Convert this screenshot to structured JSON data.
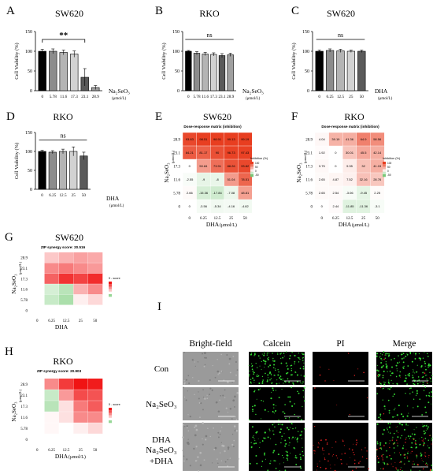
{
  "figure": {
    "panel_letters": [
      "A",
      "B",
      "C",
      "D",
      "E",
      "F",
      "G",
      "H",
      "I"
    ],
    "panel_titles": [
      "SW620",
      "RKO",
      "SW620",
      "RKO",
      "SW620",
      "RKO",
      "SW620",
      "RKO"
    ]
  },
  "chart_data": [
    {
      "id": "A",
      "type": "bar",
      "title": "SW620",
      "ylabel": "Cell Viability (%)",
      "xlabel": "Na₂SeO₃",
      "xunit": "(μmol/L)",
      "categories": [
        "0",
        "5.78",
        "11.6",
        "17.3",
        "23.1",
        "28.9"
      ],
      "values": [
        100,
        100,
        97,
        93,
        34,
        8
      ],
      "errors": [
        5,
        6,
        6,
        8,
        22,
        5
      ],
      "colors": [
        "#000000",
        "#8c8c8c",
        "#b4b4b4",
        "#d2d2d2",
        "#5a5a5a",
        "#a0a0a0"
      ],
      "ylim": [
        0,
        150
      ],
      "yticks": [
        0,
        50,
        100,
        150
      ],
      "significance": {
        "label": "**",
        "from": 0,
        "to": 4
      }
    },
    {
      "id": "B",
      "type": "bar",
      "title": "RKO",
      "ylabel": "Cell Viability (%)",
      "xlabel": "Na₂SeO₃",
      "xunit": "(μmol/L)",
      "categories": [
        "0",
        "5.78",
        "11.6",
        "17.3",
        "23.1",
        "28.9"
      ],
      "values": [
        100,
        95,
        93,
        92,
        89,
        91
      ],
      "errors": [
        2,
        4,
        4,
        4,
        5,
        4
      ],
      "colors": [
        "#000000",
        "#8c8c8c",
        "#b4b4b4",
        "#d2d2d2",
        "#5a5a5a",
        "#a0a0a0"
      ],
      "ylim": [
        0,
        150
      ],
      "yticks": [
        0,
        50,
        100,
        150
      ],
      "significance": {
        "label": "ns",
        "from": 0,
        "to": 5
      }
    },
    {
      "id": "C",
      "type": "bar",
      "title": "SW620",
      "ylabel": "Cell Viability (%)",
      "xlabel": "DHA",
      "xunit": "(μmol/L)",
      "categories": [
        "0",
        "6.25",
        "12.5",
        "25",
        "50"
      ],
      "values": [
        100,
        102,
        101,
        100,
        100
      ],
      "errors": [
        3,
        4,
        4,
        3,
        3
      ],
      "colors": [
        "#000000",
        "#8c8c8c",
        "#b4b4b4",
        "#d2d2d2",
        "#5a5a5a"
      ],
      "ylim": [
        0,
        150
      ],
      "yticks": [
        0,
        50,
        100,
        150
      ],
      "significance": {
        "label": "ns",
        "from": 0,
        "to": 4
      }
    },
    {
      "id": "D",
      "type": "bar",
      "title": "RKO",
      "ylabel": "Cell Viability (%)",
      "xlabel": "DHA",
      "xunit": "(μmol/L)",
      "categories": [
        "0",
        "6.25",
        "12.5",
        "25",
        "50"
      ],
      "values": [
        100,
        98,
        100,
        100,
        88
      ],
      "errors": [
        3,
        4,
        6,
        12,
        10
      ],
      "colors": [
        "#000000",
        "#8c8c8c",
        "#b4b4b4",
        "#d2d2d2",
        "#5a5a5a"
      ],
      "ylim": [
        0,
        150
      ],
      "yticks": [
        0,
        50,
        100,
        150
      ],
      "significance": {
        "label": "ns",
        "from": 0,
        "to": 4
      }
    },
    {
      "id": "E",
      "type": "heatmap",
      "title": "SW620",
      "subtitle": "Dose-response matrix (inhibition)",
      "xlabel": "DHA",
      "xunit": "(μmol/L)",
      "ylabel": "Na₂SeO₃",
      "yunit": "(μmol/L)",
      "legend_title": "Inhibition (%)",
      "legend_ticks": [
        "100",
        "50",
        "0",
        "-50"
      ],
      "x": [
        "0",
        "6.25",
        "12.5",
        "25",
        "50"
      ],
      "y": [
        "28.9",
        "23.1",
        "17.3",
        "11.6",
        "5.78",
        "0"
      ],
      "values": [
        [
          93.83,
          98.51,
          98.91,
          99.13,
          99.19
        ],
        [
          84.21,
          81.17,
          90,
          96.73,
          97.43
        ],
        [
          0,
          50.84,
          73.91,
          88.26,
          93.82
        ],
        [
          -2.55,
          -9,
          -8,
          51.04,
          78.51
        ],
        [
          2.66,
          -15.36,
          -17.84,
          -7.08,
          48.81
        ],
        [
          0,
          -3.56,
          -5.34,
          -4.16,
          -4.82
        ]
      ]
    },
    {
      "id": "F",
      "type": "heatmap",
      "title": "RKO",
      "subtitle": "Dose-response matrix (inhibition)",
      "xlabel": "DHA",
      "xunit": "(μmol/L)",
      "ylabel": "Na₂SeO₃",
      "yunit": "(μmol/L)",
      "legend_title": "Inhibition (%)",
      "legend_ticks": [
        "100",
        "50",
        "0",
        "-50"
      ],
      "x": [
        "0",
        "6.25",
        "12.5",
        "25",
        "50"
      ],
      "y": [
        "28.9",
        "23.1",
        "17.3",
        "11.6",
        "5.78",
        "0"
      ],
      "values": [
        [
          4.04,
          39.19,
          41.36,
          64.9,
          58.56
        ],
        [
          1.92,
          0,
          30.01,
          45.5,
          42.14
        ],
        [
          3.75,
          0,
          9.35,
          32,
          41.15
        ],
        [
          2.65,
          4.87,
          7.52,
          32.16,
          28.76
        ],
        [
          2.65,
          2.54,
          -3.06,
          -9.45,
          2.25
        ],
        [
          0,
          2.44,
          -11.85,
          -11.36,
          -3.1
        ]
      ]
    },
    {
      "id": "G",
      "type": "heatmap",
      "title": "SW620",
      "subtitle": "ZIP synergy score: 20.516",
      "xlabel": "DHA",
      "ylabel": "Na₂SeO₃",
      "yunit": "(μmol/L)",
      "legend_title": "δ - score",
      "x": [
        "0",
        "6.25",
        "12.5",
        "25",
        "50"
      ],
      "y": [
        "28.9",
        "23.1",
        "17.3",
        "11.6",
        "5.78",
        "0"
      ],
      "values": [
        [
          0,
          14,
          20,
          24,
          22
        ],
        [
          0,
          30,
          34,
          30,
          26
        ],
        [
          0,
          40,
          52,
          48,
          54
        ],
        [
          0,
          -6,
          -10,
          20,
          30
        ],
        [
          0,
          -8,
          -12,
          4,
          10
        ],
        [
          0,
          0,
          0,
          0,
          0
        ]
      ]
    },
    {
      "id": "H",
      "type": "heatmap",
      "title": "RKO",
      "subtitle": "ZIP synergy score: 20.903",
      "xlabel": "DHA",
      "xunit": "(μmol/L)",
      "ylabel": "Na₂SeO₃",
      "yunit": "(μmol/L)",
      "legend_title": "δ - score",
      "x": [
        "0",
        "6.25",
        "12.5",
        "25",
        "50"
      ],
      "y": [
        "28.9",
        "23.1",
        "17.3",
        "11.6",
        "5.78",
        "0"
      ],
      "values": [
        [
          0,
          30,
          50,
          60,
          58
        ],
        [
          0,
          -8,
          26,
          46,
          44
        ],
        [
          0,
          -10,
          8,
          34,
          42
        ],
        [
          0,
          2,
          8,
          30,
          30
        ],
        [
          0,
          2,
          0,
          4,
          10
        ],
        [
          0,
          0,
          0,
          0,
          0
        ]
      ]
    }
  ],
  "micrographs": {
    "columns": [
      "Bright-field",
      "Calcein",
      "PI",
      "Merge"
    ],
    "rows": [
      "Con",
      "Na₂SeO₃",
      "DHA",
      "Na₂SeO₃\n+DHA"
    ],
    "live_density": [
      0.7,
      0.25,
      0.4,
      0.3
    ],
    "dead_density": [
      0.04,
      0.02,
      0.02,
      0.3
    ],
    "colors": {
      "live": "#33d633",
      "dead": "#d62020",
      "bright_field": "#9a9a9a"
    }
  }
}
